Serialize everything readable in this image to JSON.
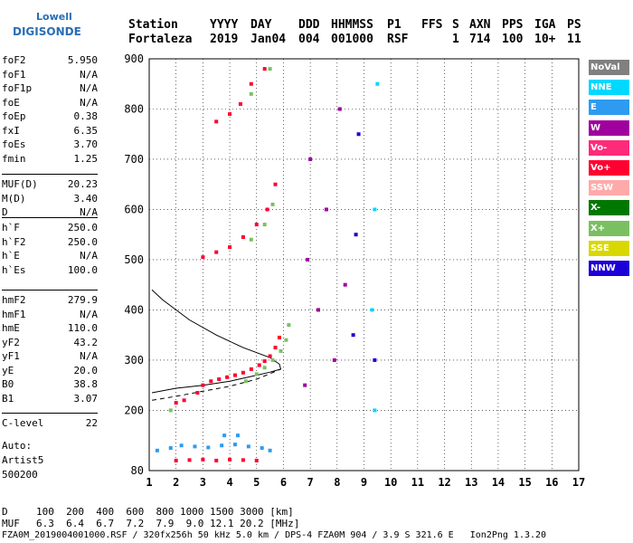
{
  "logo": {
    "line1": "Lowell",
    "line2": "DIGISONDE"
  },
  "header": {
    "labels": [
      "Station",
      "YYYY",
      "DAY",
      "DDD",
      "HHMMSS",
      "P1",
      "FFS",
      "S",
      "AXN",
      "PPS",
      "IGA",
      "PS"
    ],
    "values": [
      "Fortaleza",
      "2019",
      "Jan04",
      "004",
      "001000",
      "RSF",
      "1",
      "714",
      "100",
      "10+",
      "11"
    ]
  },
  "params_group1": [
    {
      "name": "foF2",
      "value": "5.950"
    },
    {
      "name": "foF1",
      "value": "N/A"
    },
    {
      "name": "foF1p",
      "value": "N/A"
    },
    {
      "name": "foE",
      "value": "N/A"
    },
    {
      "name": "foEp",
      "value": "0.38"
    },
    {
      "name": "fxI",
      "value": "6.35"
    },
    {
      "name": "foEs",
      "value": "3.70"
    },
    {
      "name": "fmin",
      "value": "1.25"
    }
  ],
  "params_group2": [
    {
      "name": "MUF(D)",
      "value": "20.23"
    },
    {
      "name": "M(D)",
      "value": "3.40"
    },
    {
      "name": "D",
      "value": "N/A"
    }
  ],
  "params_group3": [
    {
      "name": "h`F",
      "value": "250.0"
    },
    {
      "name": "h`F2",
      "value": "250.0"
    },
    {
      "name": "h`E",
      "value": "N/A"
    },
    {
      "name": "h`Es",
      "value": "100.0"
    }
  ],
  "params_group4": [
    {
      "name": "hmF2",
      "value": "279.9"
    },
    {
      "name": "hmF1",
      "value": "N/A"
    },
    {
      "name": "hmE",
      "value": "110.0"
    },
    {
      "name": "yF2",
      "value": "43.2"
    },
    {
      "name": "yF1",
      "value": "N/A"
    },
    {
      "name": "yE",
      "value": "20.0"
    },
    {
      "name": "B0",
      "value": "38.8"
    },
    {
      "name": "B1",
      "value": "3.07"
    }
  ],
  "params_group5": [
    {
      "name": "C-level",
      "value": "22"
    }
  ],
  "auto": {
    "line1": "Auto:",
    "line2": "Artist5",
    "line3": "500200"
  },
  "legend": [
    {
      "label": "NoVal",
      "color": "#808080"
    },
    {
      "label": "NNE",
      "color": "#00d8ff"
    },
    {
      "label": "E",
      "color": "#2e9bf0"
    },
    {
      "label": "W",
      "color": "#a0009e"
    },
    {
      "label": "Vo-",
      "color": "#ff2a7a"
    },
    {
      "label": "Vo+",
      "color": "#ff0030"
    },
    {
      "label": "SSW",
      "color": "#ffaaaa"
    },
    {
      "label": "X-",
      "color": "#007800"
    },
    {
      "label": "X+",
      "color": "#7ac060"
    },
    {
      "label": "SSE",
      "color": "#d8d800"
    },
    {
      "label": "NNW",
      "color": "#1c00d8"
    }
  ],
  "mufrow": {
    "d_label": "D",
    "d_values": "100  200  400  600  800 1000 1500 3000 [km]",
    "m_label": "MUF",
    "m_values": "6.3  6.4  6.7  7.2  7.9  9.0 12.1 20.2 [MHz]"
  },
  "footer": "FZA0M_2019004001000.RSF / 320fx256h 50 kHz 5.0 km / DPS-4 FZA0M 904 / 3.9 S 321.6 E   Ion2Png 1.3.20",
  "chart_data": {
    "type": "scatter",
    "xlim": [
      1,
      17
    ],
    "ylim": [
      80,
      900
    ],
    "x_ticks": [
      "1",
      "2",
      "3",
      "4",
      "5",
      "6",
      "7",
      "8",
      "9",
      "10",
      "11",
      "12",
      "13",
      "14",
      "15",
      "16",
      "17"
    ],
    "y_ticks": [
      "80",
      "200",
      "300",
      "400",
      "500",
      "600",
      "700",
      "800",
      "900"
    ],
    "grid": true,
    "legend_position": "right",
    "series": [
      {
        "name": "Vo+",
        "color": "#ff0030",
        "points": [
          [
            2.0,
            215
          ],
          [
            2.3,
            220
          ],
          [
            2.8,
            235
          ],
          [
            3.0,
            250
          ],
          [
            3.3,
            258
          ],
          [
            3.6,
            262
          ],
          [
            3.9,
            266
          ],
          [
            4.2,
            270
          ],
          [
            4.5,
            275
          ],
          [
            4.8,
            282
          ],
          [
            5.1,
            290
          ],
          [
            5.3,
            298
          ],
          [
            5.5,
            308
          ],
          [
            5.7,
            325
          ],
          [
            5.85,
            345
          ],
          [
            2.0,
            100
          ],
          [
            2.5,
            101
          ],
          [
            3.0,
            102
          ],
          [
            3.5,
            100
          ],
          [
            4.0,
            102
          ],
          [
            4.5,
            101
          ],
          [
            5.0,
            100
          ],
          [
            3.0,
            505
          ],
          [
            3.5,
            515
          ],
          [
            4.0,
            525
          ],
          [
            4.5,
            545
          ],
          [
            5.0,
            570
          ],
          [
            5.4,
            600
          ],
          [
            5.7,
            650
          ],
          [
            3.5,
            775
          ],
          [
            4.0,
            790
          ],
          [
            4.4,
            810
          ],
          [
            4.8,
            850
          ],
          [
            5.3,
            880
          ]
        ]
      },
      {
        "name": "X+",
        "color": "#7ac060",
        "points": [
          [
            4.6,
            258
          ],
          [
            5.0,
            272
          ],
          [
            5.3,
            285
          ],
          [
            5.6,
            300
          ],
          [
            5.9,
            318
          ],
          [
            6.1,
            340
          ],
          [
            6.2,
            370
          ],
          [
            1.8,
            200
          ],
          [
            4.8,
            540
          ],
          [
            5.3,
            570
          ],
          [
            5.6,
            610
          ],
          [
            4.8,
            830
          ],
          [
            5.5,
            880
          ]
        ]
      },
      {
        "name": "E",
        "color": "#2e9bf0",
        "points": [
          [
            1.3,
            120
          ],
          [
            1.8,
            125
          ],
          [
            2.2,
            130
          ],
          [
            2.7,
            128
          ],
          [
            3.2,
            126
          ],
          [
            3.7,
            130
          ],
          [
            4.2,
            132
          ],
          [
            4.7,
            128
          ],
          [
            5.2,
            125
          ],
          [
            5.5,
            120
          ],
          [
            3.8,
            150
          ],
          [
            4.3,
            150
          ]
        ]
      },
      {
        "name": "W",
        "color": "#a0009e",
        "points": [
          [
            6.8,
            250
          ],
          [
            6.9,
            500
          ],
          [
            7.0,
            700
          ],
          [
            7.3,
            400
          ],
          [
            7.6,
            600
          ],
          [
            7.9,
            300
          ],
          [
            8.1,
            800
          ],
          [
            8.3,
            450
          ]
        ]
      },
      {
        "name": "NNE",
        "color": "#00d8ff",
        "points": [
          [
            9.3,
            400
          ],
          [
            9.4,
            600
          ],
          [
            9.5,
            850
          ],
          [
            9.4,
            200
          ]
        ]
      },
      {
        "name": "NNW",
        "color": "#1c00d8",
        "points": [
          [
            8.6,
            350
          ],
          [
            8.7,
            550
          ],
          [
            8.8,
            750
          ],
          [
            9.4,
            300
          ]
        ]
      }
    ],
    "profile_curves": [
      {
        "style": "solid",
        "points": [
          [
            1.1,
            235
          ],
          [
            2.0,
            244
          ],
          [
            3.0,
            250
          ],
          [
            4.0,
            258
          ],
          [
            5.0,
            270
          ],
          [
            5.5,
            276
          ],
          [
            5.9,
            282
          ],
          [
            5.85,
            292
          ],
          [
            5.5,
            305
          ],
          [
            4.5,
            325
          ],
          [
            3.5,
            350
          ],
          [
            2.5,
            380
          ],
          [
            1.5,
            420
          ],
          [
            1.1,
            440
          ]
        ]
      },
      {
        "style": "dashed",
        "points": [
          [
            1.1,
            220
          ],
          [
            2.0,
            228
          ],
          [
            3.0,
            238
          ],
          [
            4.0,
            248
          ],
          [
            5.0,
            262
          ],
          [
            5.9,
            282
          ]
        ]
      }
    ]
  }
}
